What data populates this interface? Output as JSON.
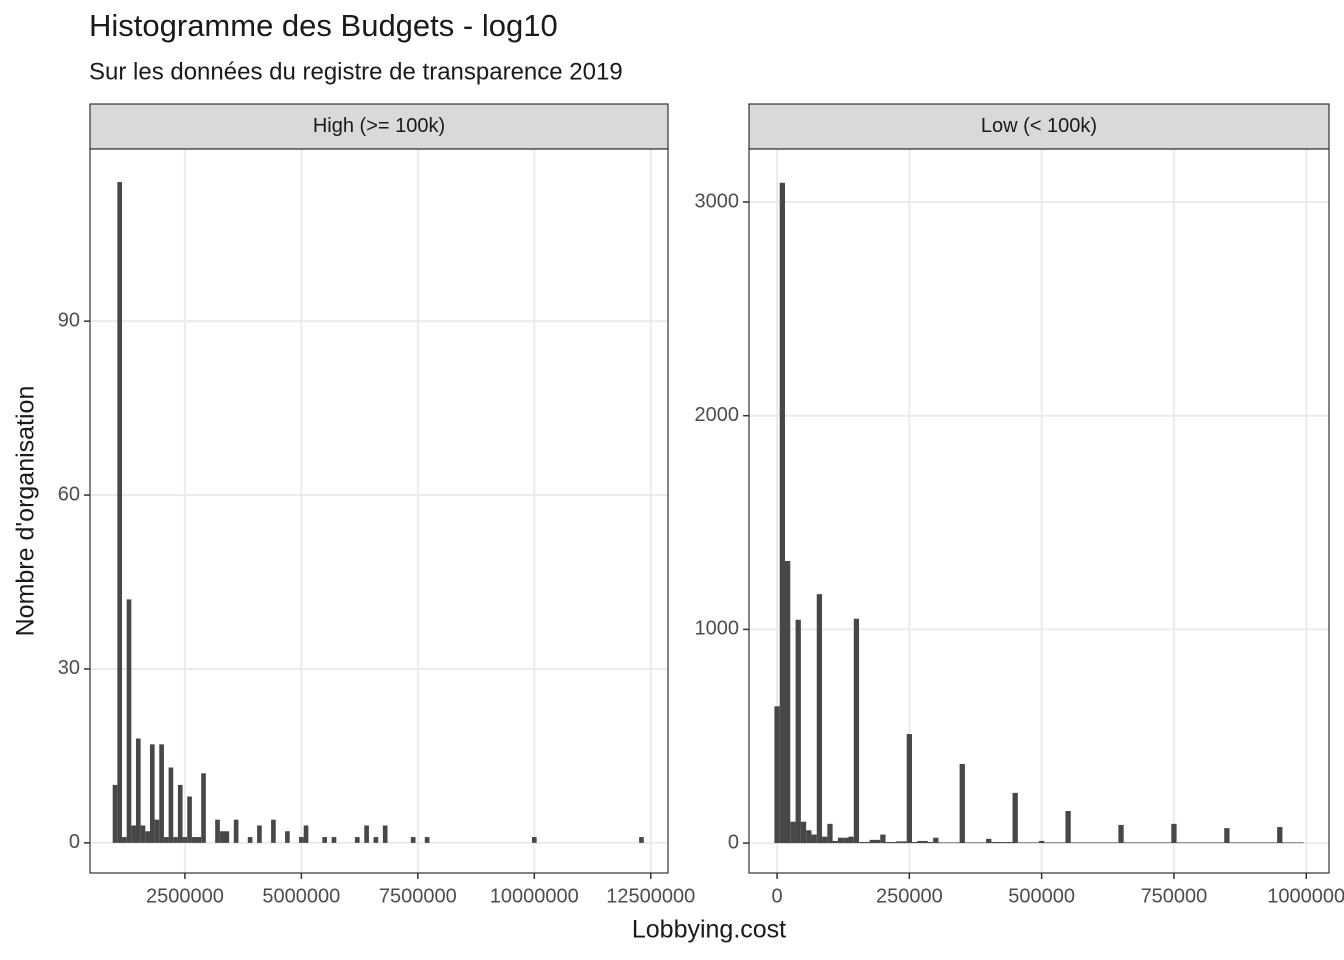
{
  "chart_data": [
    {
      "type": "histogram",
      "title": "Histogramme des Budgets - log10",
      "subtitle": "Sur les données du registre de transparence 2019",
      "x_label": "Lobbying.cost",
      "y_label": "Nombre d'organisation",
      "facet": "High (>= 100k)",
      "color": "#474747",
      "grid": true,
      "bins": [
        950000,
        1050000,
        1150000,
        1250000,
        1350000,
        1450000,
        1550000,
        1650000,
        1750000,
        1850000,
        1950000,
        2050000,
        2150000,
        2250000,
        2350000,
        2450000,
        2550000,
        2650000,
        2750000,
        2850000,
        2950000,
        3050000,
        3150000,
        3250000,
        3350000,
        3450000,
        3550000,
        3650000,
        3750000,
        3850000,
        3950000,
        4050000,
        4150000,
        4250000,
        4350000,
        4450000,
        4550000,
        4650000,
        4750000,
        4850000,
        4950000,
        5050000,
        5150000,
        5250000,
        5350000,
        5450000,
        5550000,
        5650000,
        5750000,
        5850000,
        5950000,
        6050000,
        6150000,
        6250000,
        6350000,
        6450000,
        6550000,
        6650000,
        6750000,
        6850000,
        6950000,
        7050000,
        7150000,
        7250000,
        7350000,
        7450000,
        7550000,
        7650000,
        7750000,
        7850000,
        7950000,
        8050000,
        8150000,
        8250000,
        8350000,
        8450000,
        8550000,
        8650000,
        8750000,
        8850000,
        8950000,
        9050000,
        9150000,
        9250000,
        9350000,
        9450000,
        9550000,
        9650000,
        9750000,
        9850000,
        9950000,
        10050000,
        10150000,
        10250000,
        10350000,
        10450000,
        10550000,
        10650000,
        10750000,
        10850000,
        10950000,
        11050000,
        11150000,
        11250000,
        11350000,
        11450000,
        11550000,
        11650000,
        11750000,
        11850000,
        11950000,
        12050000,
        12150000,
        12250000,
        12350000
      ],
      "counts": [
        10,
        114,
        1,
        42,
        3,
        18,
        3,
        2,
        17,
        4,
        17,
        1,
        13,
        1,
        10,
        1,
        8,
        1,
        1,
        12,
        0,
        0,
        4,
        2,
        2,
        0,
        4,
        0,
        0,
        1,
        0,
        3,
        0,
        0,
        4,
        0,
        0,
        2,
        0,
        0,
        1,
        3,
        0,
        0,
        0,
        1,
        0,
        1,
        0,
        0,
        0,
        0,
        1,
        0,
        3,
        0,
        1,
        0,
        3,
        0,
        0,
        0,
        0,
        0,
        1,
        0,
        0,
        1,
        0,
        0,
        0,
        0,
        0,
        0,
        0,
        0,
        0,
        0,
        0,
        0,
        0,
        0,
        0,
        0,
        0,
        0,
        0,
        0,
        0,
        0,
        1,
        0,
        0,
        0,
        0,
        0,
        0,
        0,
        0,
        0,
        0,
        0,
        0,
        0,
        0,
        0,
        0,
        0,
        0,
        0,
        0,
        0,
        0,
        1
      ],
      "xlim": [
        463000,
        12870000
      ],
      "xticks": [
        2500000,
        5000000,
        7500000,
        10000000,
        12500000
      ],
      "ylim": [
        -5.2,
        119.7
      ],
      "yticks": [
        0,
        30,
        60,
        90
      ]
    },
    {
      "type": "histogram",
      "facet": "Low (< 100k)",
      "color": "#474747",
      "grid": true,
      "bins": [
        -5000,
        5000,
        15000,
        25000,
        35000,
        45000,
        55000,
        65000,
        75000,
        85000,
        95000,
        105000,
        115000,
        125000,
        135000,
        145000,
        155000,
        165000,
        175000,
        185000,
        195000,
        205000,
        215000,
        225000,
        235000,
        245000,
        255000,
        265000,
        275000,
        285000,
        295000,
        305000,
        315000,
        325000,
        335000,
        345000,
        355000,
        365000,
        375000,
        385000,
        395000,
        405000,
        415000,
        425000,
        435000,
        445000,
        455000,
        465000,
        475000,
        485000,
        495000,
        505000,
        515000,
        525000,
        535000,
        545000,
        555000,
        565000,
        575000,
        585000,
        595000,
        605000,
        615000,
        625000,
        635000,
        645000,
        655000,
        665000,
        675000,
        685000,
        695000,
        705000,
        715000,
        725000,
        735000,
        745000,
        755000,
        765000,
        775000,
        785000,
        795000,
        805000,
        815000,
        825000,
        835000,
        845000,
        855000,
        865000,
        875000,
        885000,
        895000,
        905000,
        915000,
        925000,
        935000,
        945000,
        955000,
        965000,
        975000,
        985000,
        995000
      ],
      "counts": [
        640,
        3090,
        1320,
        100,
        1045,
        100,
        60,
        40,
        1165,
        30,
        90,
        10,
        25,
        25,
        30,
        1050,
        5,
        5,
        15,
        15,
        40,
        5,
        5,
        8,
        8,
        510,
        5,
        10,
        10,
        5,
        25,
        3,
        3,
        3,
        3,
        370,
        3,
        3,
        3,
        3,
        20,
        5,
        5,
        5,
        5,
        235,
        3,
        3,
        3,
        3,
        10,
        3,
        3,
        3,
        3,
        150,
        3,
        3,
        3,
        3,
        3,
        3,
        3,
        3,
        3,
        85,
        3,
        3,
        3,
        3,
        3,
        3,
        3,
        3,
        3,
        90,
        3,
        3,
        3,
        3,
        3,
        3,
        3,
        3,
        3,
        70,
        3,
        3,
        3,
        3,
        3,
        3,
        3,
        3,
        3,
        75,
        3,
        3,
        3,
        3
      ],
      "xlim": [
        -53000,
        1043000
      ],
      "xticks": [
        0,
        250000,
        500000,
        750000,
        1000000
      ],
      "ylim": [
        -140,
        3248
      ],
      "yticks": [
        0,
        1000,
        2000,
        3000
      ]
    }
  ]
}
